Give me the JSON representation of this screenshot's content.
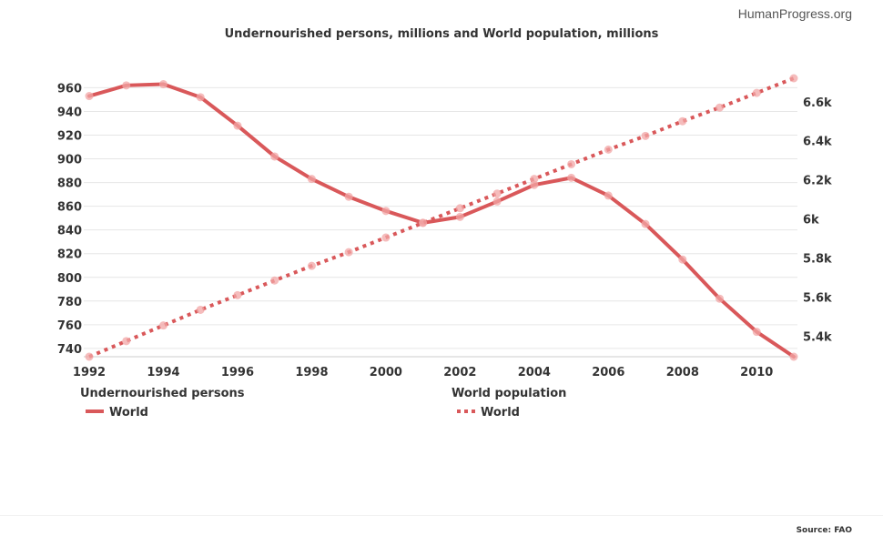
{
  "brand": "HumanProgress.org",
  "source": "Source: FAO",
  "colors": {
    "series": "#d9585a",
    "marker": "#f2a5a6",
    "grid": "#e6e6e6",
    "text": "#333333"
  },
  "chart_data": {
    "type": "line",
    "title": "Undernourished persons, millions and World population, millions",
    "x": [
      1992,
      1993,
      1994,
      1995,
      1996,
      1997,
      1998,
      1999,
      2000,
      2001,
      2002,
      2003,
      2004,
      2005,
      2006,
      2007,
      2008,
      2009,
      2010,
      2011
    ],
    "x_ticks": [
      "1992",
      "1994",
      "1996",
      "1998",
      "2000",
      "2002",
      "2004",
      "2006",
      "2008",
      "2010"
    ],
    "y_left": {
      "ticks": [
        "740",
        "760",
        "780",
        "800",
        "820",
        "840",
        "860",
        "880",
        "900",
        "920",
        "940",
        "960"
      ],
      "range": [
        733,
        968
      ]
    },
    "y_right": {
      "ticks": [
        "5.4k",
        "5.6k",
        "5.8k",
        "6k",
        "6.2k",
        "6.4k",
        "6.6k"
      ],
      "range": [
        5295,
        6720
      ]
    },
    "grid": true,
    "series": [
      {
        "name": "World",
        "group": "Undernourished persons",
        "axis": "left",
        "style": "solid",
        "values": [
          953,
          962,
          963,
          952,
          928,
          902,
          883,
          868,
          856,
          846,
          851,
          864,
          878,
          884,
          869,
          845,
          815,
          782,
          754,
          733
        ]
      },
      {
        "name": "World",
        "group": "World population",
        "axis": "right",
        "style": "dotted",
        "values": [
          5295,
          5375,
          5455,
          5535,
          5610,
          5685,
          5760,
          5830,
          5905,
          5980,
          6055,
          6130,
          6205,
          6280,
          6355,
          6425,
          6500,
          6570,
          6645,
          6720
        ]
      }
    ],
    "legend": {
      "placement": "bottom",
      "groups": [
        {
          "title": "Undernourished persons",
          "label": "World"
        },
        {
          "title": "World population",
          "label": "World"
        }
      ]
    }
  }
}
